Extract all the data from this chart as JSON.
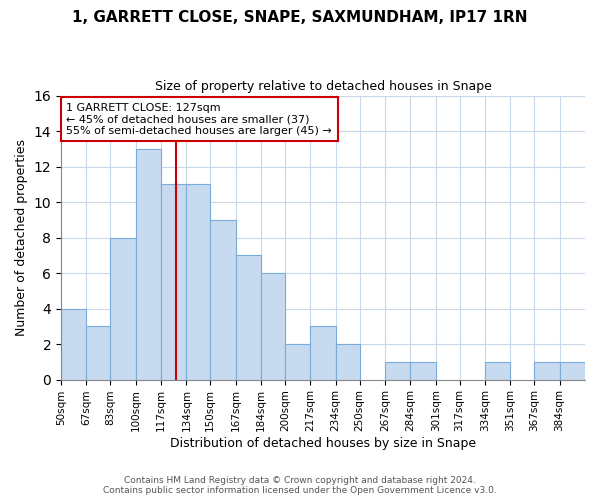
{
  "title": "1, GARRETT CLOSE, SNAPE, SAXMUNDHAM, IP17 1RN",
  "subtitle": "Size of property relative to detached houses in Snape",
  "xlabel": "Distribution of detached houses by size in Snape",
  "ylabel": "Number of detached properties",
  "footer_line1": "Contains HM Land Registry data © Crown copyright and database right 2024.",
  "footer_line2": "Contains public sector information licensed under the Open Government Licence v3.0.",
  "bin_labels": [
    "50sqm",
    "67sqm",
    "83sqm",
    "100sqm",
    "117sqm",
    "134sqm",
    "150sqm",
    "167sqm",
    "184sqm",
    "200sqm",
    "217sqm",
    "234sqm",
    "250sqm",
    "267sqm",
    "284sqm",
    "301sqm",
    "317sqm",
    "334sqm",
    "351sqm",
    "367sqm",
    "384sqm"
  ],
  "bar_heights": [
    4,
    3,
    8,
    13,
    11,
    11,
    9,
    7,
    6,
    2,
    3,
    2,
    0,
    1,
    1,
    0,
    0,
    1,
    0,
    1,
    1
  ],
  "bar_color": "#c8daf0",
  "bar_edge_color": "#7aacdb",
  "vline_color": "#cc0000",
  "annotation_title": "1 GARRETT CLOSE: 127sqm",
  "annotation_line1": "← 45% of detached houses are smaller (37)",
  "annotation_line2": "55% of semi-detached houses are larger (45) →",
  "annotation_box_edge": "#cc0000",
  "ylim": [
    0,
    16
  ],
  "yticks": [
    0,
    2,
    4,
    6,
    8,
    10,
    12,
    14,
    16
  ],
  "bin_edges": [
    50,
    67,
    83,
    100,
    117,
    134,
    150,
    167,
    184,
    200,
    217,
    234,
    250,
    267,
    284,
    301,
    317,
    334,
    351,
    367,
    384,
    401
  ],
  "vline_x": 127
}
